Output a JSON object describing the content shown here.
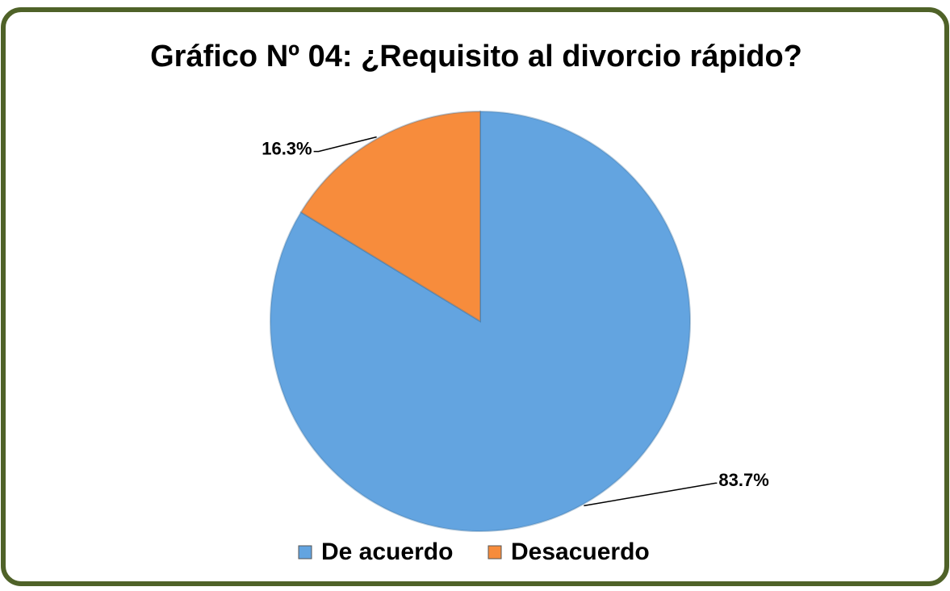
{
  "chart_data": {
    "type": "pie",
    "title": "Gráfico Nº 04: ¿Requisito al divorcio rápido?",
    "categories": [
      "De acuerdo",
      "Desacuerdo"
    ],
    "values": [
      83.7,
      16.3
    ],
    "value_labels": [
      "83.7%",
      "16.3%"
    ],
    "colors": [
      "#63a4e0",
      "#f78c3c"
    ],
    "legend": "bottom"
  }
}
